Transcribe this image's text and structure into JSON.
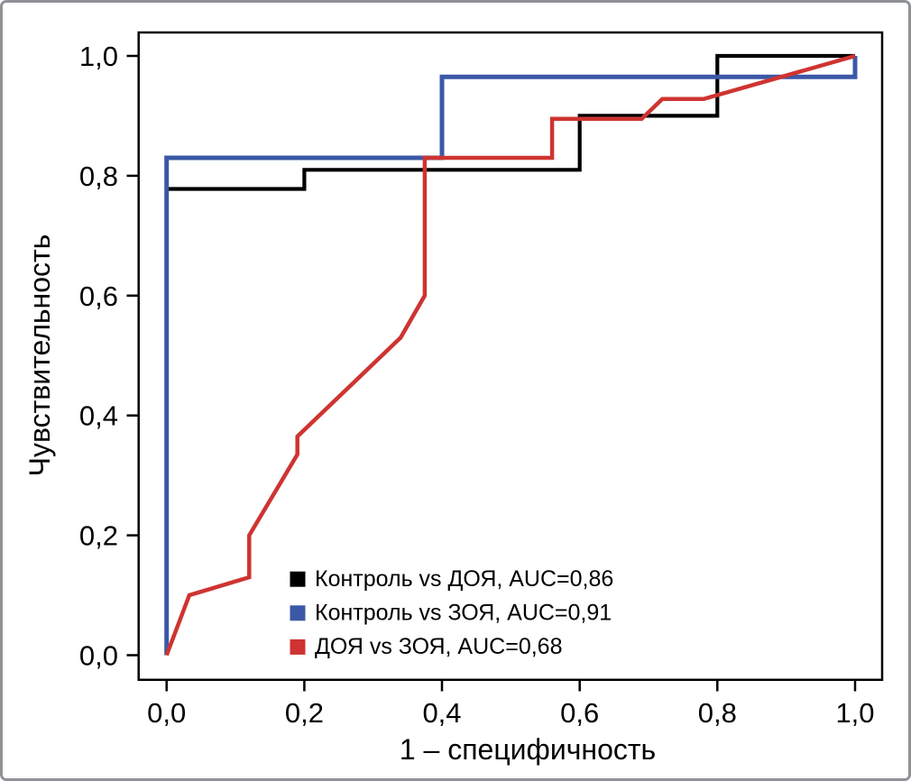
{
  "chart_data": {
    "type": "line",
    "subtype": "roc-curves",
    "title": "",
    "xlabel": "1 – специфичность",
    "ylabel": "Чувствительность",
    "xlim": [
      0.0,
      1.0
    ],
    "ylim": [
      0.0,
      1.0
    ],
    "grid": false,
    "legend_position": "inside-bottom-right",
    "x_ticks": {
      "values": [
        0.0,
        0.2,
        0.4,
        0.6,
        0.8,
        1.0
      ],
      "labels": [
        "0,0",
        "0,2",
        "0,4",
        "0,6",
        "0,8",
        "1,0"
      ]
    },
    "y_ticks": {
      "values": [
        0.0,
        0.2,
        0.4,
        0.6,
        0.8,
        1.0
      ],
      "labels": [
        "0,0",
        "0,2",
        "0,4",
        "0,6",
        "0,8",
        "1,0"
      ]
    },
    "series": [
      {
        "id": "kontrol-vs-doya",
        "label": "Контроль vs ДОЯ, AUC=0,86",
        "auc_label": "0,86",
        "auc": 0.86,
        "color": "#000000",
        "points": [
          [
            0,
            0
          ],
          [
            0,
            0.778
          ],
          [
            0.2,
            0.778
          ],
          [
            0.2,
            0.81
          ],
          [
            0.6,
            0.81
          ],
          [
            0.6,
            0.9
          ],
          [
            0.8,
            0.9
          ],
          [
            0.8,
            1.0
          ],
          [
            1.0,
            1.0
          ]
        ]
      },
      {
        "id": "kontrol-vs-zoya",
        "label": "Контроль vs ЗОЯ, AUC=0,91",
        "auc_label": "0,91",
        "auc": 0.91,
        "color": "#3B58A7",
        "points": [
          [
            0,
            0
          ],
          [
            0,
            0.83
          ],
          [
            0.4,
            0.83
          ],
          [
            0.4,
            0.965
          ],
          [
            1.0,
            0.965
          ],
          [
            1.0,
            1.0
          ]
        ]
      },
      {
        "id": "doya-vs-zoya",
        "label": "ДОЯ vs ЗОЯ, AUC=0,68",
        "auc_label": "0,68",
        "auc": 0.68,
        "color": "#CE3431",
        "points": [
          [
            0,
            0
          ],
          [
            0.033,
            0.1
          ],
          [
            0.12,
            0.13
          ],
          [
            0.12,
            0.2
          ],
          [
            0.19,
            0.335
          ],
          [
            0.19,
            0.365
          ],
          [
            0.34,
            0.53
          ],
          [
            0.375,
            0.6
          ],
          [
            0.375,
            0.83
          ],
          [
            0.56,
            0.83
          ],
          [
            0.56,
            0.895
          ],
          [
            0.69,
            0.895
          ],
          [
            0.72,
            0.928
          ],
          [
            0.78,
            0.928
          ],
          [
            1.0,
            1.0
          ]
        ]
      }
    ]
  },
  "figure": {
    "border_color": "#8f9296",
    "background_color": "#ffffff"
  }
}
